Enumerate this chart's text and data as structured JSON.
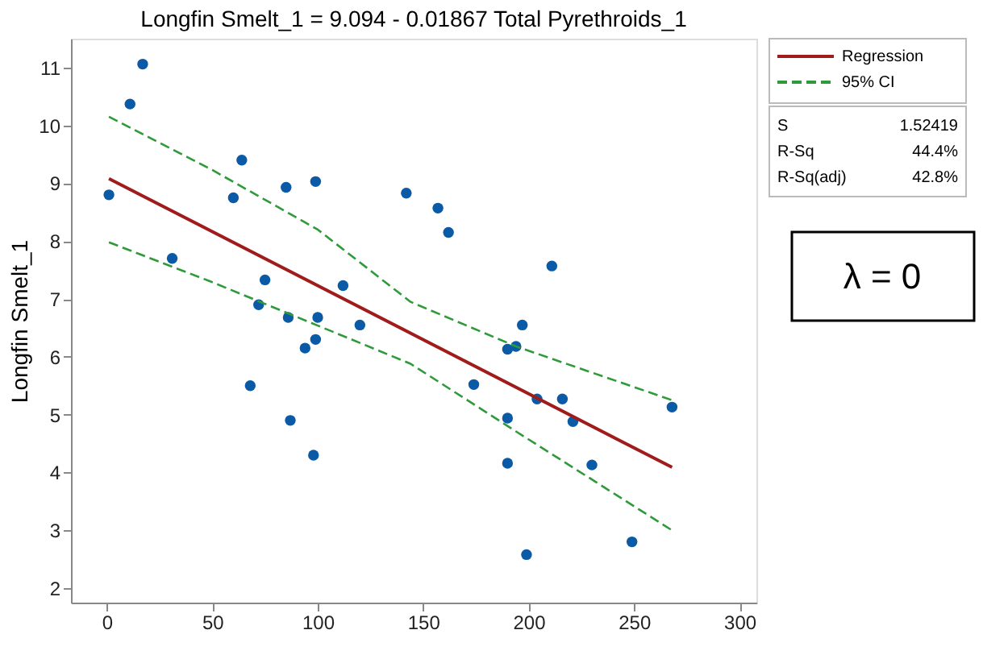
{
  "chart_data": {
    "type": "scatter",
    "title": "Longfin Smelt_1 = 9.094 - 0.01867 Total Pyrethroids_1",
    "ylabel": "Longfin Smelt_1",
    "xlim": [
      -17,
      308
    ],
    "xticks": [
      0,
      50,
      100,
      150,
      200,
      250,
      300
    ],
    "ylim": [
      1.75,
      11.5
    ],
    "yticks": [
      2,
      3,
      4,
      5,
      6,
      7,
      8,
      9,
      10,
      11
    ],
    "grid": false,
    "legend": "right",
    "annotations": [
      "S",
      "1.52419",
      "R-Sq",
      "44.4%",
      "R-Sq(adj)",
      "42.8%",
      "λ = 0"
    ],
    "series": [
      {
        "color": "#0b5aa6",
        "marker": "circle",
        "x": [
          1,
          11,
          17,
          31,
          60,
          64,
          85,
          99,
          68,
          72,
          75,
          86,
          100,
          94,
          99,
          87,
          98,
          112,
          120,
          142,
          157,
          162,
          211,
          197,
          190,
          194,
          174,
          204,
          216,
          221,
          190,
          190,
          230,
          268,
          249,
          199
        ],
        "values": [
          8.8,
          10.37,
          11.06,
          7.7,
          8.75,
          9.4,
          8.93,
          9.03,
          5.5,
          6.9,
          7.33,
          6.68,
          6.68,
          6.15,
          6.3,
          4.9,
          4.3,
          7.23,
          6.55,
          8.83,
          8.57,
          8.15,
          7.57,
          6.55,
          6.13,
          6.18,
          5.52,
          5.27,
          5.27,
          4.88,
          4.94,
          4.16,
          4.13,
          5.13,
          2.8,
          2.58
        ]
      },
      {
        "type": "line",
        "name": "Regression",
        "color": "#a01c1c",
        "line_style": "solid",
        "x": [
          1,
          268
        ],
        "values": [
          9.08,
          4.09
        ]
      },
      {
        "type": "line",
        "name": "95% CI",
        "color": "#2e9a3a",
        "line_style": "dashed",
        "x": [
          1,
          50,
          100,
          144,
          194,
          268
        ],
        "values": [
          10.15,
          9.23,
          8.2,
          6.95,
          6.18,
          5.25
        ]
      },
      {
        "type": "line",
        "color": "#2e9a3a",
        "line_style": "dashed",
        "x": [
          1,
          50,
          100,
          144,
          194,
          268
        ],
        "values": [
          7.98,
          7.29,
          6.54,
          5.88,
          4.71,
          3.0
        ]
      }
    ]
  }
}
